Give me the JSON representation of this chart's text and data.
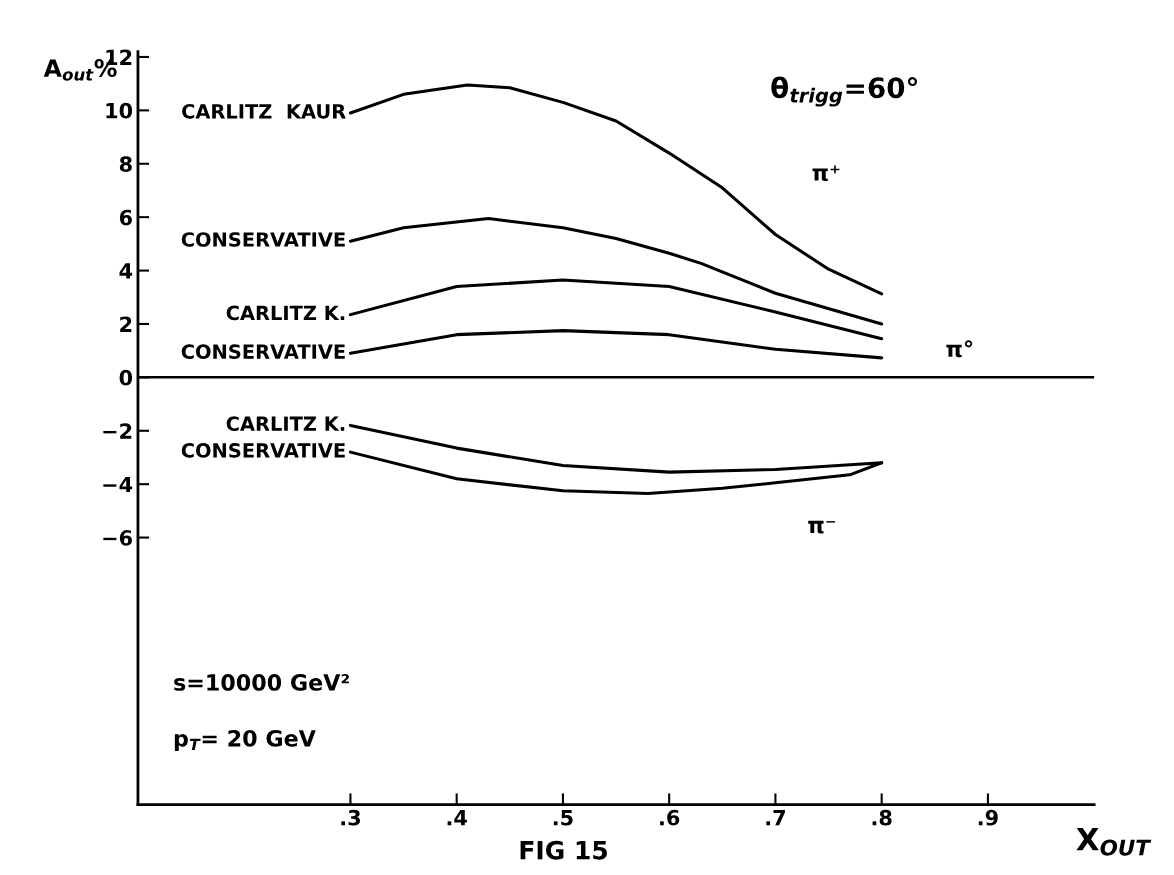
{
  "chart_data": {
    "type": "line",
    "xlabel": "X$_{OUT}$",
    "ylabel": "A$_{out}$%",
    "xlim": [
      0.1,
      1.0
    ],
    "ylim": [
      -16,
      12.2
    ],
    "xticks": [
      {
        "value": 0.3,
        "label": ".3"
      },
      {
        "value": 0.4,
        "label": ".4"
      },
      {
        "value": 0.5,
        "label": ".5"
      },
      {
        "value": 0.6,
        "label": ".6"
      },
      {
        "value": 0.7,
        "label": ".7"
      },
      {
        "value": 0.8,
        "label": ".8"
      },
      {
        "value": 0.9,
        "label": ".9"
      }
    ],
    "yticks": [
      -6,
      -4,
      -2,
      0,
      2,
      4,
      6,
      8,
      10,
      12
    ],
    "grid": false,
    "legend": false,
    "marker": "none",
    "line_style": "solid",
    "ref_lines": [
      {
        "axis": "y",
        "value": 0,
        "color": "#000000"
      }
    ],
    "series": [
      {
        "name": "CARLITZ  KAUR",
        "color": "#000000",
        "x": [
          0.3,
          0.35,
          0.41,
          0.45,
          0.5,
          0.55,
          0.6,
          0.65,
          0.7,
          0.75,
          0.8
        ],
        "values": [
          9.9,
          10.6,
          10.95,
          10.85,
          10.3,
          9.6,
          8.4,
          7.1,
          5.35,
          4.05,
          3.13
        ]
      },
      {
        "name": "CONSERVATIVE",
        "color": "#000000",
        "x": [
          0.3,
          0.35,
          0.43,
          0.5,
          0.55,
          0.6,
          0.63,
          0.7,
          0.8
        ],
        "values": [
          5.1,
          5.6,
          5.95,
          5.6,
          5.2,
          4.65,
          4.27,
          3.15,
          2.0
        ]
      },
      {
        "name": "CARLITZ K.",
        "color": "#000000",
        "x": [
          0.3,
          0.4,
          0.5,
          0.6,
          0.7,
          0.8
        ],
        "values": [
          2.35,
          3.4,
          3.65,
          3.4,
          2.45,
          1.45
        ]
      },
      {
        "name": "CONSERVATIVE",
        "color": "#000000",
        "x": [
          0.3,
          0.4,
          0.5,
          0.6,
          0.7,
          0.8
        ],
        "values": [
          0.9,
          1.6,
          1.75,
          1.6,
          1.05,
          0.73
        ]
      },
      {
        "name": "CARLITZ K.",
        "color": "#000000",
        "x": [
          0.3,
          0.4,
          0.5,
          0.6,
          0.7,
          0.8
        ],
        "values": [
          -1.8,
          -2.65,
          -3.3,
          -3.55,
          -3.45,
          -3.2
        ]
      },
      {
        "name": "CONSERVATIVE",
        "color": "#000000",
        "x": [
          0.3,
          0.4,
          0.5,
          0.58,
          0.65,
          0.7,
          0.77,
          0.8
        ],
        "values": [
          -2.8,
          -3.8,
          -4.25,
          -4.35,
          -4.15,
          -3.95,
          -3.65,
          -3.2
        ]
      }
    ],
    "annotations": [
      "θ$_{trigg}$=60°",
      "π⁺",
      "π°",
      "π⁻",
      "s=10000 GeV²",
      "p$_{T}$= 20 GeV",
      "FIG 15"
    ]
  }
}
